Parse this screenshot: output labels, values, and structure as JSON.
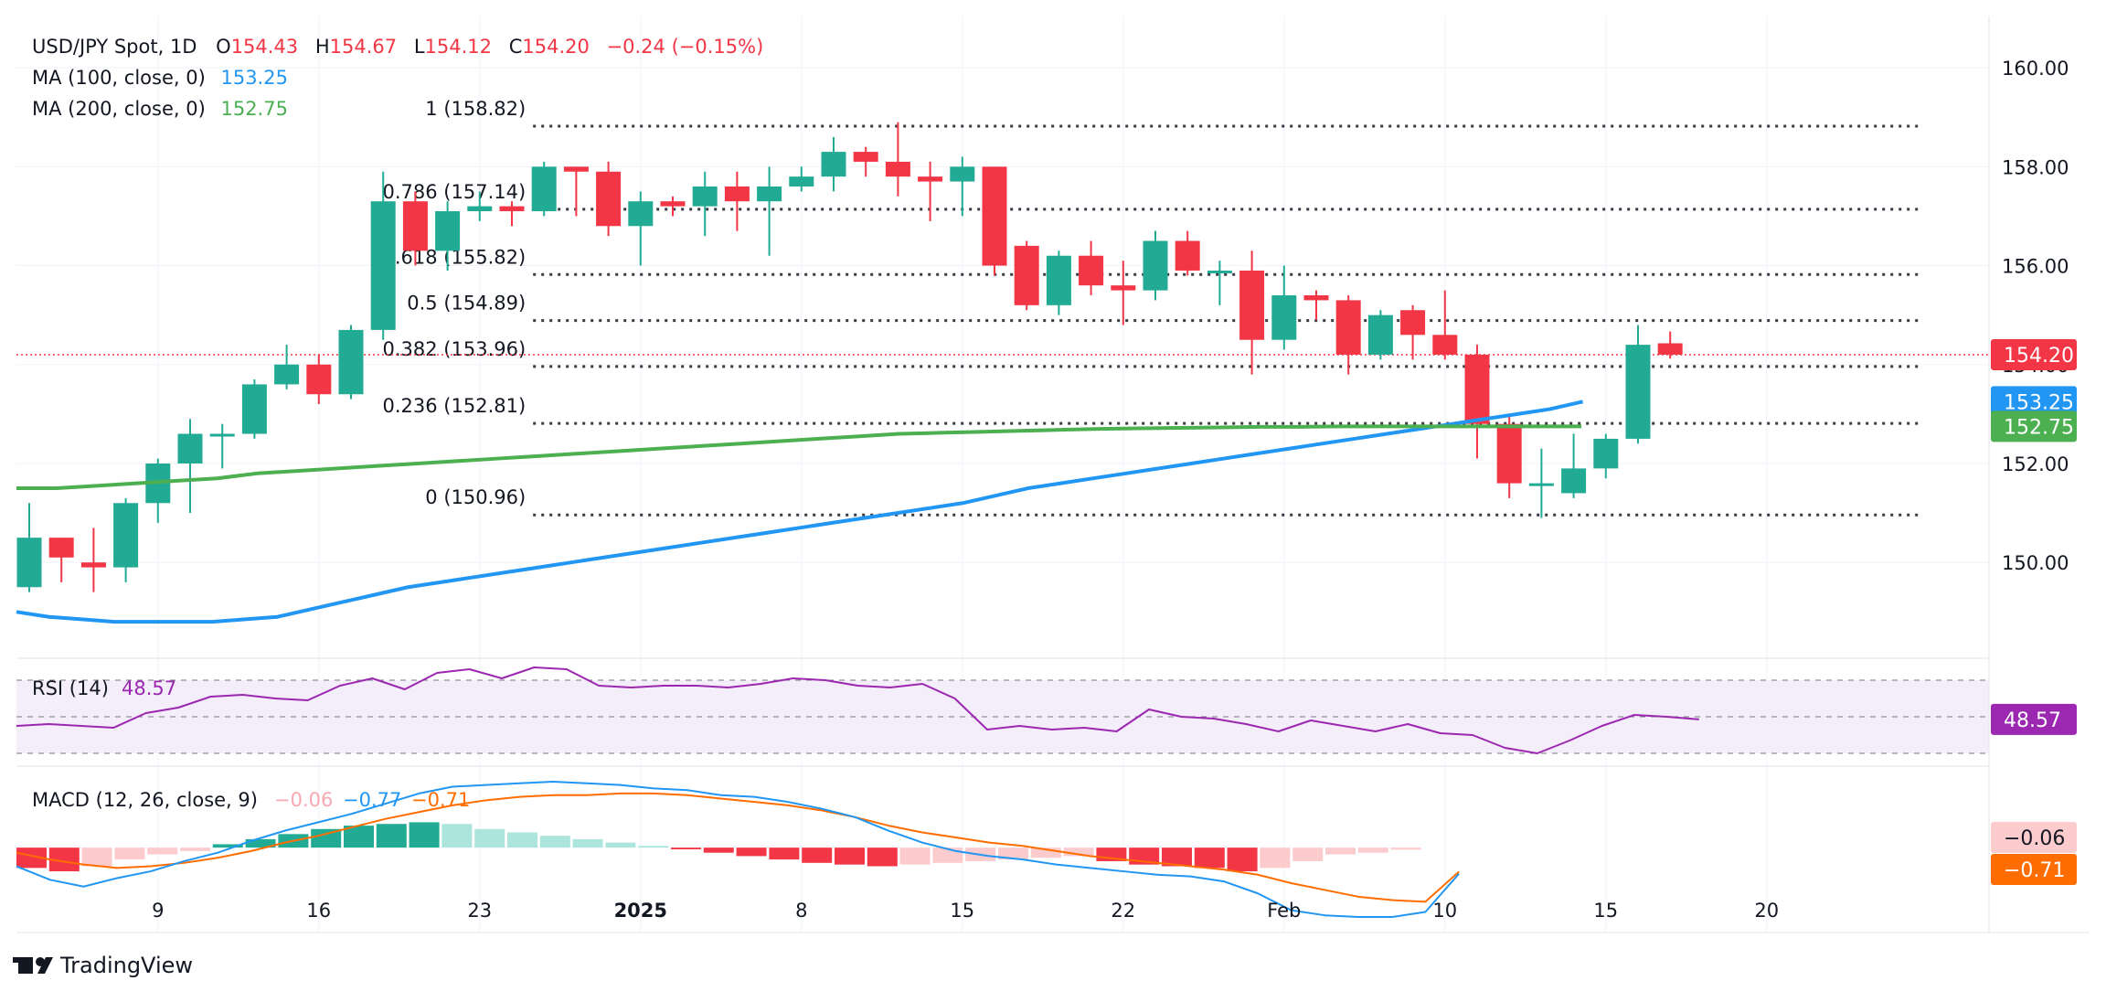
{
  "header": {
    "symbol": "USD/JPY Spot, 1D",
    "o_label": "O",
    "o_value": "154.43",
    "h_label": "H",
    "h_value": "154.67",
    "l_label": "L",
    "l_value": "154.12",
    "c_label": "C",
    "c_value": "154.20",
    "change": "−0.24 (−0.15%)",
    "ma100_label": "MA (100, close, 0)",
    "ma100_value": "153.25",
    "ma200_label": "MA (200, close, 0)",
    "ma200_value": "152.75"
  },
  "colors": {
    "up": "#22ab94",
    "down": "#f23645",
    "ma100": "#2196f3",
    "ma200": "#4caf50",
    "rsi": "#9c27b0",
    "macd": "#2196f3",
    "signal": "#ff6d00",
    "hist_up_strong": "#22ab94",
    "hist_up_weak": "#ace5dc",
    "hist_down_strong": "#f23645",
    "hist_down_weak": "#fccbcd",
    "grid": "#f0f3fa",
    "fib": "#363a45"
  },
  "chart_data": {
    "type": "candlestick",
    "title": "USD/JPY Spot, 1D",
    "y_range": [
      148.1,
      161.0
    ],
    "y_ticks": [
      "150.00",
      "152.00",
      "154.00",
      "156.00",
      "158.00",
      "160.00"
    ],
    "x_ticks": [
      "9",
      "16",
      "23",
      "2025",
      "8",
      "15",
      "22",
      "Feb",
      "10",
      "15",
      "20"
    ],
    "x_tick_positions": [
      4,
      9,
      14,
      19,
      24,
      29,
      34,
      39,
      44,
      49,
      54
    ],
    "fib_levels": [
      {
        "label": "1 (158.82)",
        "value": 158.82
      },
      {
        "label": "0.786 (157.14)",
        "value": 157.14
      },
      {
        "label": "0.618 (155.82)",
        "value": 155.82
      },
      {
        "label": "0.5 (154.89)",
        "value": 154.89
      },
      {
        "label": "0.382 (153.96)",
        "value": 153.96
      },
      {
        "label": "0.236 (152.81)",
        "value": 152.81
      },
      {
        "label": "0 (150.96)",
        "value": 150.96
      }
    ],
    "fib_start_index": 16,
    "fib_end_index": 58.5,
    "current_price": {
      "label": "154.20",
      "value": 154.2
    },
    "ma100_badge": {
      "label": "153.25",
      "value": 153.25
    },
    "ma200_badge": {
      "label": "152.75",
      "value": 152.75
    },
    "candles": [
      [
        149.5,
        150.5,
        151.2,
        149.4
      ],
      [
        150.5,
        150.1,
        150.5,
        149.6
      ],
      [
        150.0,
        149.9,
        150.7,
        149.4
      ],
      [
        149.9,
        151.2,
        151.3,
        149.6
      ],
      [
        151.2,
        152.0,
        152.1,
        150.8
      ],
      [
        152.0,
        152.6,
        152.9,
        151.0
      ],
      [
        152.6,
        152.6,
        152.8,
        151.9
      ],
      [
        152.6,
        153.6,
        153.7,
        152.5
      ],
      [
        153.6,
        154.0,
        154.4,
        153.5
      ],
      [
        154.0,
        153.4,
        154.2,
        153.2
      ],
      [
        153.4,
        154.7,
        154.8,
        153.3
      ],
      [
        154.7,
        157.3,
        157.9,
        154.5
      ],
      [
        157.3,
        156.3,
        157.5,
        156.0
      ],
      [
        156.3,
        157.1,
        157.3,
        155.9
      ],
      [
        157.1,
        157.2,
        157.5,
        156.9
      ],
      [
        157.2,
        157.1,
        157.3,
        156.8
      ],
      [
        157.1,
        158.0,
        158.1,
        157.0
      ],
      [
        158.0,
        157.9,
        158.0,
        157.0
      ],
      [
        157.9,
        156.8,
        158.1,
        156.6
      ],
      [
        156.8,
        157.3,
        157.5,
        156.0
      ],
      [
        157.3,
        157.2,
        157.4,
        157.0
      ],
      [
        157.2,
        157.6,
        157.9,
        156.6
      ],
      [
        157.6,
        157.3,
        157.9,
        156.7
      ],
      [
        157.3,
        157.6,
        158.0,
        156.2
      ],
      [
        157.6,
        157.8,
        158.0,
        157.5
      ],
      [
        157.8,
        158.3,
        158.6,
        157.5
      ],
      [
        158.3,
        158.1,
        158.4,
        157.8
      ],
      [
        158.1,
        157.8,
        158.9,
        157.4
      ],
      [
        157.8,
        157.7,
        158.1,
        156.9
      ],
      [
        157.7,
        158.0,
        158.2,
        157.0
      ],
      [
        158.0,
        156.0,
        158.0,
        155.8
      ],
      [
        156.4,
        155.2,
        156.5,
        155.1
      ],
      [
        155.2,
        156.2,
        156.3,
        155.0
      ],
      [
        156.2,
        155.6,
        156.5,
        155.4
      ],
      [
        155.6,
        155.5,
        156.1,
        154.8
      ],
      [
        155.5,
        156.5,
        156.7,
        155.3
      ],
      [
        156.5,
        155.9,
        156.7,
        155.8
      ],
      [
        155.9,
        155.9,
        156.1,
        155.2
      ],
      [
        155.9,
        154.5,
        156.3,
        153.8
      ],
      [
        154.5,
        155.4,
        156.0,
        154.3
      ],
      [
        155.4,
        155.3,
        155.5,
        154.9
      ],
      [
        155.3,
        154.2,
        155.4,
        153.8
      ],
      [
        154.2,
        155.0,
        155.1,
        154.1
      ],
      [
        155.1,
        154.6,
        155.2,
        154.1
      ],
      [
        154.6,
        154.2,
        155.5,
        154.1
      ],
      [
        154.2,
        152.8,
        154.4,
        152.1
      ],
      [
        152.8,
        151.6,
        153.0,
        151.3
      ],
      [
        151.6,
        151.6,
        152.3,
        150.9
      ],
      [
        151.4,
        151.9,
        152.6,
        151.3
      ],
      [
        151.9,
        152.5,
        152.6,
        151.7
      ],
      [
        152.5,
        154.4,
        154.8,
        152.4
      ],
      [
        154.43,
        154.2,
        154.67,
        154.12
      ]
    ],
    "ma100": [
      149.0,
      148.9,
      148.85,
      148.8,
      148.8,
      148.8,
      148.8,
      148.85,
      148.9,
      149.05,
      149.2,
      149.35,
      149.5,
      149.6,
      149.7,
      149.8,
      149.9,
      150.0,
      150.1,
      150.2,
      150.3,
      150.4,
      150.5,
      150.6,
      150.7,
      150.8,
      150.9,
      151.0,
      151.1,
      151.2,
      151.35,
      151.5,
      151.6,
      151.7,
      151.8,
      151.9,
      152.0,
      152.1,
      152.2,
      152.3,
      152.4,
      152.5,
      152.6,
      152.7,
      152.8,
      152.9,
      153.0,
      153.1,
      153.25
    ],
    "ma200": [
      151.5,
      151.5,
      151.55,
      151.6,
      151.65,
      151.7,
      151.8,
      151.85,
      151.9,
      151.95,
      152.0,
      152.05,
      152.1,
      152.15,
      152.2,
      152.25,
      152.3,
      152.35,
      152.4,
      152.45,
      152.5,
      152.55,
      152.6,
      152.62,
      152.64,
      152.66,
      152.68,
      152.7,
      152.71,
      152.72,
      152.73,
      152.74,
      152.74,
      152.75,
      152.75,
      152.75,
      152.75,
      152.75,
      152.75,
      152.75
    ],
    "rsi": {
      "label": "RSI (14)",
      "value_label": "48.57",
      "range": [
        25,
        80
      ],
      "bands": [
        70,
        50,
        30
      ],
      "values": [
        45,
        46,
        45,
        44,
        52,
        55,
        61,
        62,
        60,
        59,
        67,
        71,
        65,
        74,
        76,
        71,
        77,
        76,
        67,
        66,
        67,
        67,
        66,
        68,
        71,
        70,
        67,
        66,
        68,
        60,
        43,
        45,
        43,
        44,
        42,
        54,
        50,
        49,
        46,
        42,
        48,
        45,
        42,
        46,
        41,
        40,
        33,
        30,
        37,
        45,
        51,
        50,
        48.57
      ]
    },
    "macd": {
      "label": "MACD (12, 26, close, 9)",
      "hist_label": "−0.06",
      "macd_label": "−0.77",
      "signal_label": "−0.71",
      "range": [
        -2.4,
        2.3
      ],
      "macd_values": [
        -0.55,
        -0.95,
        -1.15,
        -0.9,
        -0.7,
        -0.4,
        -0.15,
        0.2,
        0.5,
        0.75,
        1.0,
        1.3,
        1.6,
        1.8,
        1.85,
        1.9,
        1.95,
        1.9,
        1.85,
        1.75,
        1.7,
        1.55,
        1.5,
        1.35,
        1.15,
        0.9,
        0.5,
        0.15,
        -0.1,
        -0.25,
        -0.35,
        -0.5,
        -0.6,
        -0.7,
        -0.8,
        -0.85,
        -1.0,
        -1.35,
        -1.85,
        -2.0,
        -2.05,
        -2.05,
        -1.9,
        -0.77
      ],
      "signal_values": [
        -0.15,
        -0.35,
        -0.5,
        -0.6,
        -0.55,
        -0.45,
        -0.3,
        -0.1,
        0.15,
        0.35,
        0.6,
        0.85,
        1.05,
        1.25,
        1.4,
        1.5,
        1.55,
        1.55,
        1.6,
        1.6,
        1.55,
        1.45,
        1.35,
        1.25,
        1.1,
        0.9,
        0.65,
        0.45,
        0.3,
        0.15,
        0.05,
        -0.1,
        -0.25,
        -0.35,
        -0.45,
        -0.55,
        -0.65,
        -0.8,
        -1.05,
        -1.25,
        -1.45,
        -1.55,
        -1.6,
        -0.71
      ],
      "hist_values": [
        -0.6,
        -0.7,
        -0.55,
        -0.35,
        -0.2,
        -0.1,
        0.1,
        0.25,
        0.4,
        0.55,
        0.65,
        0.7,
        0.75,
        0.7,
        0.55,
        0.45,
        0.35,
        0.25,
        0.15,
        0.05,
        -0.05,
        -0.15,
        -0.25,
        -0.35,
        -0.45,
        -0.5,
        -0.55,
        -0.5,
        -0.45,
        -0.4,
        -0.35,
        -0.3,
        -0.25,
        -0.4,
        -0.5,
        -0.55,
        -0.6,
        -0.7,
        -0.6,
        -0.4,
        -0.2,
        -0.15,
        -0.06
      ]
    }
  },
  "axis_badges": {
    "rsi": "48.57",
    "macd_hist": "−0.06",
    "macd_signal": "−0.71"
  },
  "footer": {
    "brand": "TradingView"
  }
}
